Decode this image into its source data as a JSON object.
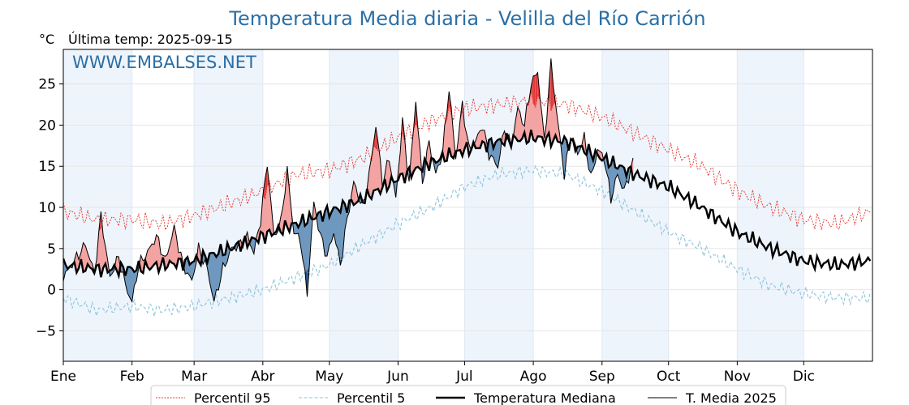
{
  "chart_data": {
    "type": "line",
    "title": "Temperatura Media diaria - Velilla del Río Carrión",
    "unit_label": "°C",
    "last_temp_label": "Última temp: 2025-09-15",
    "watermark": "WWW.EMBALSES.NET",
    "xlabel": "",
    "ylabel": "",
    "x_tick_labels": [
      "Ene",
      "Feb",
      "Mar",
      "Abr",
      "May",
      "Jun",
      "Jul",
      "Ago",
      "Sep",
      "Oct",
      "Nov",
      "Dic"
    ],
    "month_start_days": [
      0,
      31,
      59,
      90,
      120,
      151,
      181,
      212,
      243,
      273,
      304,
      334
    ],
    "xlim": [
      0,
      365
    ],
    "ylim": [
      -8.7,
      29.2
    ],
    "y_ticks": [
      -5,
      0,
      5,
      10,
      15,
      20,
      25
    ],
    "y_tick_labels": [
      "−5",
      "0",
      "5",
      "10",
      "15",
      "20",
      "25"
    ],
    "grid": true,
    "legend_position": "bottom-center",
    "legend": [
      "Percentil 95",
      "Percentil 5",
      "Temperatura Mediana",
      "T. Media 2025"
    ],
    "colors": {
      "p95": "#e8302a",
      "p5": "#8cc4dc",
      "median": "#000000",
      "current": "#000000",
      "above_fill": "#f4a3a3",
      "below_fill": "#6f98bf",
      "extreme_above_fill": "#e03a3a",
      "extreme_below_fill": "#1f4f86",
      "band_shade": "#eef4fb",
      "title": "#2a6fa6"
    },
    "series": [
      {
        "name": "Percentil 95",
        "style": "dotted",
        "key_days": [
          0,
          15,
          31,
          45,
          59,
          75,
          90,
          105,
          120,
          135,
          151,
          166,
          181,
          196,
          212,
          227,
          243,
          258,
          273,
          288,
          304,
          319,
          334,
          349,
          364
        ],
        "key_values": [
          9.5,
          8.5,
          8.5,
          8.0,
          9.0,
          10.5,
          12.0,
          14.0,
          14.5,
          16.0,
          18.5,
          20.5,
          22.0,
          22.5,
          23.0,
          22.5,
          21.0,
          19.0,
          17.0,
          15.0,
          12.0,
          10.0,
          8.5,
          8.0,
          9.5
        ]
      },
      {
        "name": "Percentil 5",
        "style": "dashed",
        "key_days": [
          0,
          15,
          31,
          45,
          59,
          75,
          90,
          105,
          120,
          135,
          151,
          166,
          181,
          196,
          212,
          227,
          243,
          258,
          273,
          288,
          304,
          319,
          334,
          349,
          364
        ],
        "key_values": [
          -1.0,
          -2.5,
          -2.0,
          -2.5,
          -2.0,
          -1.0,
          0.0,
          1.5,
          3.0,
          5.5,
          8.0,
          10.0,
          12.5,
          14.0,
          14.5,
          14.0,
          12.0,
          9.5,
          7.0,
          5.0,
          2.5,
          0.5,
          -0.5,
          -1.0,
          -1.0
        ]
      },
      {
        "name": "Temperatura Mediana",
        "style": "solid-thick",
        "key_days": [
          0,
          15,
          31,
          45,
          59,
          75,
          90,
          105,
          120,
          135,
          151,
          166,
          181,
          196,
          212,
          227,
          243,
          258,
          273,
          288,
          304,
          319,
          334,
          349,
          364
        ],
        "key_values": [
          3.0,
          2.5,
          2.5,
          3.0,
          3.5,
          5.0,
          6.5,
          8.0,
          9.5,
          11.0,
          13.5,
          15.5,
          17.0,
          18.0,
          18.5,
          18.0,
          16.0,
          14.0,
          12.5,
          10.0,
          7.0,
          5.0,
          3.5,
          3.0,
          3.5
        ]
      },
      {
        "name": "T. Media 2025",
        "style": "solid-thin",
        "last_day": 257,
        "key_days": [
          0,
          5,
          10,
          14,
          17,
          21,
          25,
          28,
          31,
          34,
          38,
          42,
          46,
          50,
          54,
          58,
          61,
          65,
          68,
          72,
          76,
          80,
          83,
          86,
          89,
          92,
          95,
          98,
          101,
          104,
          107,
          110,
          113,
          116,
          119,
          122,
          125,
          128,
          131,
          135,
          138,
          141,
          144,
          147,
          150,
          153,
          156,
          159,
          162,
          165,
          168,
          171,
          174,
          177,
          180,
          183,
          186,
          189,
          192,
          196,
          199,
          202,
          205,
          208,
          211,
          214,
          217,
          220,
          223,
          226,
          229,
          232,
          235,
          238,
          241,
          244,
          247,
          250,
          253,
          257
        ],
        "key_values": [
          1.5,
          3.5,
          5.5,
          2.0,
          9.0,
          1.5,
          4.0,
          0.5,
          -1.5,
          3.0,
          4.5,
          6.5,
          3.5,
          7.5,
          3.0,
          1.0,
          5.0,
          2.5,
          -1.5,
          2.5,
          5.0,
          5.5,
          6.5,
          4.5,
          8.5,
          15.5,
          6.5,
          8.0,
          14.5,
          7.0,
          6.0,
          -0.5,
          10.5,
          6.5,
          4.0,
          7.0,
          3.0,
          8.5,
          13.0,
          10.0,
          14.0,
          20.0,
          13.0,
          16.0,
          11.0,
          20.5,
          13.0,
          23.0,
          13.0,
          18.0,
          14.0,
          16.5,
          24.5,
          16.0,
          22.5,
          17.0,
          18.0,
          20.0,
          16.5,
          15.0,
          19.5,
          17.5,
          22.0,
          20.0,
          25.0,
          26.5,
          18.0,
          27.5,
          20.5,
          14.0,
          19.0,
          16.5,
          18.5,
          13.5,
          17.0,
          16.0,
          11.0,
          14.0,
          12.0,
          15.5
        ]
      }
    ]
  }
}
